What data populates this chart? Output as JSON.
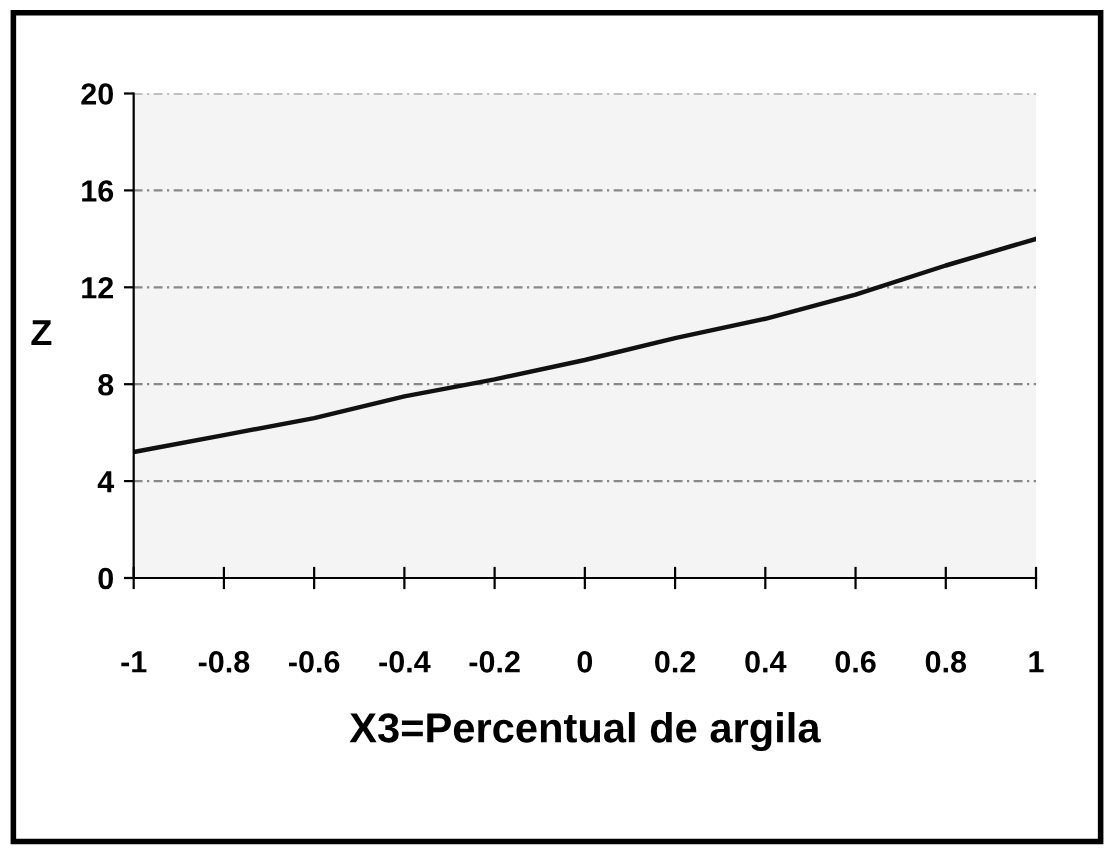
{
  "chart_data": {
    "type": "line",
    "xlabel": "X3=Percentual de argila",
    "ylabel": "Z",
    "x": [
      -1,
      -0.8,
      -0.6,
      -0.4,
      -0.2,
      0,
      0.2,
      0.4,
      0.6,
      0.8,
      1
    ],
    "series": [
      {
        "color": "#111111",
        "values": [
          5.2,
          5.9,
          6.6,
          7.5,
          8.2,
          9.0,
          9.9,
          10.7,
          11.7,
          12.9,
          14.0
        ]
      }
    ],
    "xlim": [
      -1,
      1
    ],
    "xticks": [
      -1,
      -0.8,
      -0.6,
      -0.4,
      -0.2,
      0,
      0.2,
      0.4,
      0.6,
      0.8,
      1
    ],
    "ylim": [
      0,
      20
    ],
    "yticks": [
      0,
      4,
      8,
      12,
      16,
      20
    ],
    "grid": "y",
    "marker": "none",
    "line_style": "solid",
    "legend": false
  }
}
